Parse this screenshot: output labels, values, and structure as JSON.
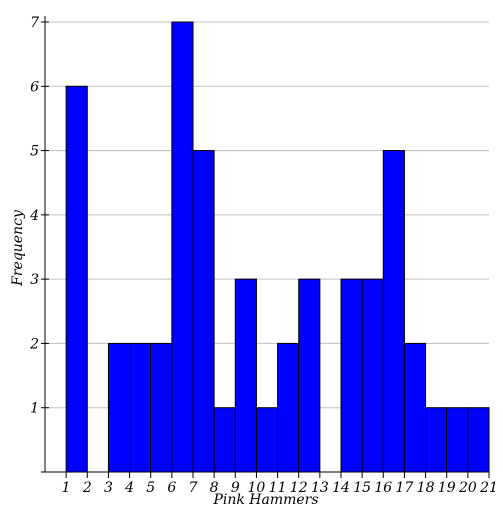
{
  "chart_data": {
    "type": "bar",
    "title": "",
    "xlabel": "Pink Hammers",
    "ylabel": "Frequency",
    "bin_edges": [
      1,
      2,
      3,
      4,
      5,
      6,
      7,
      8,
      9,
      10,
      11,
      12,
      13,
      14,
      15,
      16,
      17,
      18,
      19,
      20,
      21
    ],
    "values": [
      6,
      0,
      2,
      2,
      2,
      7,
      5,
      1,
      3,
      1,
      2,
      3,
      0,
      3,
      3,
      5,
      2,
      1,
      1,
      1
    ],
    "xlim": [
      0,
      21
    ],
    "ylim": [
      0,
      7
    ],
    "x_ticks": [
      1,
      2,
      3,
      4,
      5,
      6,
      7,
      8,
      9,
      10,
      11,
      12,
      13,
      14,
      15,
      16,
      17,
      18,
      19,
      20,
      21
    ],
    "y_ticks": [
      1,
      2,
      3,
      4,
      5,
      6,
      7
    ],
    "grid": "horizontal",
    "bar_color": "#0000ff",
    "bar_edge_color": "#000000",
    "grid_color": "#c0c0c0"
  }
}
